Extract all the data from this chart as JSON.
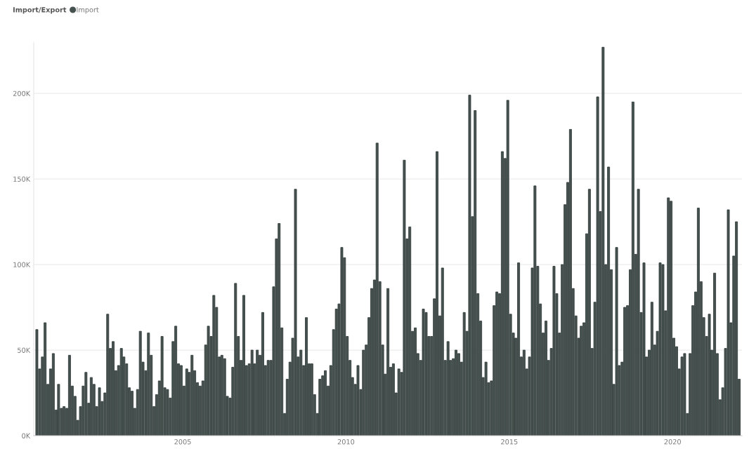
{
  "chart_data": {
    "type": "bar",
    "legend_title": "Import/Export",
    "legend": "top left",
    "grid": "y",
    "x": [
      "2000-07",
      "2000-08",
      "2000-09",
      "2000-10",
      "2000-11",
      "2000-12",
      "2001-01",
      "2001-02",
      "2001-03",
      "2001-04",
      "2001-05",
      "2001-06",
      "2001-07",
      "2001-08",
      "2001-09",
      "2001-10",
      "2001-11",
      "2001-12",
      "2002-01",
      "2002-02",
      "2002-03",
      "2002-04",
      "2002-05",
      "2002-06",
      "2002-07",
      "2002-08",
      "2002-09",
      "2002-10",
      "2002-11",
      "2002-12",
      "2003-01",
      "2003-02",
      "2003-03",
      "2003-04",
      "2003-05",
      "2003-06",
      "2003-07",
      "2003-08",
      "2003-09",
      "2003-10",
      "2003-11",
      "2003-12",
      "2004-01",
      "2004-02",
      "2004-03",
      "2004-04",
      "2004-05",
      "2004-06",
      "2004-07",
      "2004-08",
      "2004-09",
      "2004-10",
      "2004-11",
      "2004-12",
      "2005-01",
      "2005-02",
      "2005-03",
      "2005-04",
      "2005-05",
      "2005-06",
      "2005-07",
      "2005-08",
      "2005-09",
      "2005-10",
      "2005-11",
      "2005-12",
      "2006-01",
      "2006-02",
      "2006-03",
      "2006-04",
      "2006-05",
      "2006-06",
      "2006-07",
      "2006-08",
      "2006-09",
      "2006-10",
      "2006-11",
      "2006-12",
      "2007-01",
      "2007-02",
      "2007-03",
      "2007-04",
      "2007-05",
      "2007-06",
      "2007-07",
      "2007-08",
      "2007-09",
      "2007-10",
      "2007-11",
      "2007-12",
      "2008-01",
      "2008-02",
      "2008-03",
      "2008-04",
      "2008-05",
      "2008-06",
      "2008-07",
      "2008-08",
      "2008-09",
      "2008-10",
      "2008-11",
      "2008-12",
      "2009-01",
      "2009-02",
      "2009-03",
      "2009-04",
      "2009-05",
      "2009-06",
      "2009-07",
      "2009-08",
      "2009-09",
      "2009-10",
      "2009-11",
      "2009-12",
      "2010-01",
      "2010-02",
      "2010-03",
      "2010-04",
      "2010-05",
      "2010-06",
      "2010-07",
      "2010-08",
      "2010-09",
      "2010-10",
      "2010-11",
      "2010-12",
      "2011-01",
      "2011-02",
      "2011-03",
      "2011-04",
      "2011-05",
      "2011-06",
      "2011-07",
      "2011-08",
      "2011-09",
      "2011-10",
      "2011-11",
      "2011-12",
      "2012-01",
      "2012-02",
      "2012-03",
      "2012-04",
      "2012-05",
      "2012-06",
      "2012-07",
      "2012-08",
      "2012-09",
      "2012-10",
      "2012-11",
      "2012-12",
      "2013-01",
      "2013-02",
      "2013-03",
      "2013-04",
      "2013-05",
      "2013-06",
      "2013-07",
      "2013-08",
      "2013-09",
      "2013-10",
      "2013-11",
      "2013-12",
      "2014-01",
      "2014-02",
      "2014-03",
      "2014-04",
      "2014-05",
      "2014-06",
      "2014-07",
      "2014-08",
      "2014-09",
      "2014-10",
      "2014-11",
      "2014-12",
      "2015-01",
      "2015-02",
      "2015-03",
      "2015-04",
      "2015-05",
      "2015-06",
      "2015-07",
      "2015-08",
      "2015-09",
      "2015-10",
      "2015-11",
      "2015-12",
      "2016-01",
      "2016-02",
      "2016-03",
      "2016-04",
      "2016-05",
      "2016-06",
      "2016-07",
      "2016-08",
      "2016-09",
      "2016-10",
      "2016-11",
      "2016-12",
      "2017-01",
      "2017-02",
      "2017-03",
      "2017-04",
      "2017-05",
      "2017-06",
      "2017-07",
      "2017-08",
      "2017-09",
      "2017-10",
      "2017-11",
      "2017-12",
      "2018-01",
      "2018-02",
      "2018-03",
      "2018-04",
      "2018-05",
      "2018-06",
      "2018-07",
      "2018-08",
      "2018-09",
      "2018-10",
      "2018-11",
      "2018-12",
      "2019-01",
      "2019-02",
      "2019-03",
      "2019-04",
      "2019-05",
      "2019-06",
      "2019-07",
      "2019-08",
      "2019-09",
      "2019-10",
      "2019-11",
      "2019-12",
      "2020-01",
      "2020-02",
      "2020-03",
      "2020-04",
      "2020-05",
      "2020-06",
      "2020-07",
      "2020-08",
      "2020-09",
      "2020-10",
      "2020-11",
      "2020-12",
      "2021-01",
      "2021-02",
      "2021-03",
      "2021-04",
      "2021-05",
      "2021-06",
      "2021-07",
      "2021-08",
      "2021-09",
      "2021-10",
      "2021-11",
      "2021-12",
      "2022-01"
    ],
    "series": [
      {
        "name": "Import",
        "color": "#46524f",
        "values": [
          62000,
          39000,
          46000,
          66000,
          30000,
          39000,
          48000,
          15000,
          30000,
          16000,
          17000,
          16000,
          47000,
          29000,
          23000,
          9000,
          17000,
          29000,
          37000,
          19000,
          34000,
          30000,
          17000,
          28000,
          20000,
          25000,
          71000,
          51000,
          55000,
          38000,
          41000,
          51000,
          46000,
          42000,
          28000,
          26000,
          16000,
          27000,
          61000,
          43000,
          38000,
          60000,
          47000,
          17000,
          24000,
          32000,
          58000,
          28000,
          27000,
          22000,
          55000,
          64000,
          42000,
          41000,
          29000,
          39000,
          37000,
          47000,
          38000,
          31000,
          29000,
          32000,
          53000,
          64000,
          58000,
          82000,
          75000,
          46000,
          47000,
          45000,
          23000,
          22000,
          40000,
          89000,
          58000,
          44000,
          82000,
          41000,
          42000,
          50000,
          42000,
          50000,
          47000,
          72000,
          41000,
          44000,
          44000,
          87000,
          115000,
          124000,
          63000,
          13000,
          33000,
          43000,
          57000,
          144000,
          46000,
          50000,
          41000,
          69000,
          42000,
          42000,
          24000,
          13000,
          33000,
          35000,
          38000,
          29000,
          41000,
          62000,
          74000,
          77000,
          110000,
          104000,
          58000,
          44000,
          34000,
          30000,
          41000,
          27000,
          50000,
          53000,
          69000,
          86000,
          91000,
          171000,
          90000,
          53000,
          36000,
          86000,
          40000,
          42000,
          25000,
          39000,
          37000,
          161000,
          115000,
          122000,
          61000,
          63000,
          48000,
          44000,
          74000,
          72000,
          58000,
          58000,
          80000,
          166000,
          70000,
          98000,
          44000,
          55000,
          44000,
          45000,
          50000,
          48000,
          43000,
          72000,
          61000,
          199000,
          128000,
          190000,
          83000,
          67000,
          34000,
          43000,
          31000,
          32000,
          76000,
          84000,
          83000,
          166000,
          162000,
          196000,
          71000,
          60000,
          57000,
          101000,
          46000,
          50000,
          39000,
          46000,
          98000,
          146000,
          99000,
          77000,
          60000,
          67000,
          44000,
          51000,
          99000,
          83000,
          60000,
          100000,
          135000,
          148000,
          179000,
          86000,
          70000,
          57000,
          64000,
          66000,
          118000,
          144000,
          51000,
          78000,
          198000,
          131000,
          227000,
          100000,
          157000,
          97000,
          30000,
          110000,
          41000,
          43000,
          75000,
          76000,
          97000,
          195000,
          106000,
          144000,
          72000,
          101000,
          46000,
          50000,
          78000,
          53000,
          61000,
          101000,
          100000,
          73000,
          139000,
          137000,
          57000,
          52000,
          39000,
          46000,
          48000,
          13000,
          48000,
          76000,
          84000,
          133000,
          90000,
          69000,
          58000,
          71000,
          50000,
          95000,
          48000,
          21000,
          28000,
          51000,
          132000,
          66000,
          105000,
          125000,
          33000
        ]
      }
    ],
    "xlim": [
      "2000-06-10",
      "2022-02-15"
    ],
    "xticks": [
      {
        "value": "2005",
        "label": "2005"
      },
      {
        "value": "2010",
        "label": "2010"
      },
      {
        "value": "2015",
        "label": "2015"
      },
      {
        "value": "2020",
        "label": "2020"
      }
    ],
    "ylim": [
      0,
      230000
    ],
    "yticks": [
      {
        "value": 0,
        "label": "0K"
      },
      {
        "value": 50000,
        "label": "50K"
      },
      {
        "value": 100000,
        "label": "100K"
      },
      {
        "value": 150000,
        "label": "150K"
      },
      {
        "value": 200000,
        "label": "200K"
      }
    ]
  }
}
